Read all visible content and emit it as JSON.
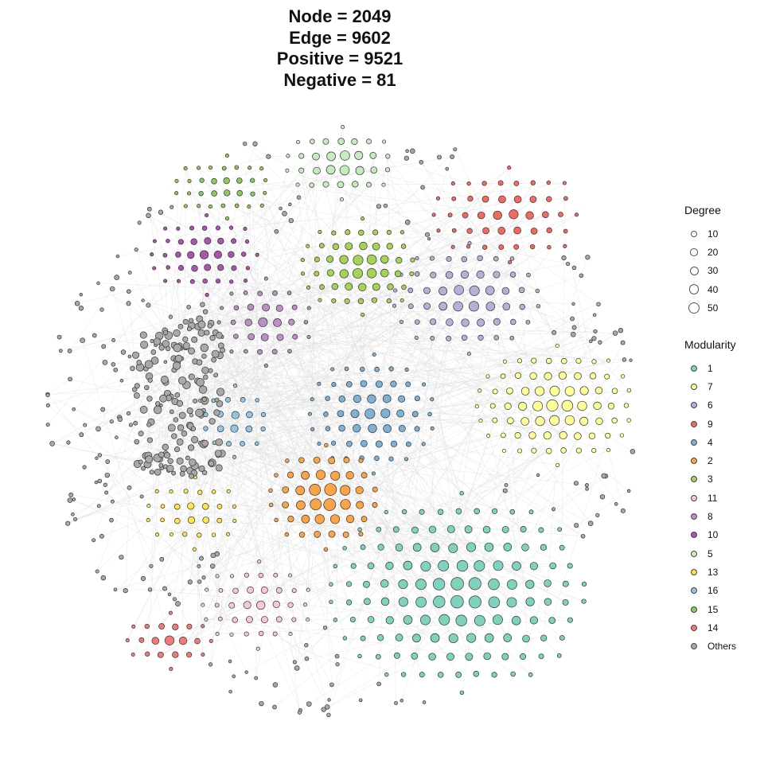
{
  "title": {
    "lines": [
      "Node = 2049",
      "Edge = 9602",
      "Positive = 9521",
      "Negative = 81"
    ]
  },
  "legend_degree": {
    "title": "Degree",
    "items": [
      {
        "label": "10",
        "value": 10
      },
      {
        "label": "20",
        "value": 20
      },
      {
        "label": "30",
        "value": 30
      },
      {
        "label": "40",
        "value": 40
      },
      {
        "label": "50",
        "value": 50
      }
    ]
  },
  "legend_modularity": {
    "title": "Modularity",
    "items": [
      {
        "label": "1",
        "color": "#7fd3be"
      },
      {
        "label": "7",
        "color": "#ffff99"
      },
      {
        "label": "6",
        "color": "#b6b0d6"
      },
      {
        "label": "9",
        "color": "#f16a62"
      },
      {
        "label": "4",
        "color": "#7eb1d4"
      },
      {
        "label": "2",
        "color": "#f9a446"
      },
      {
        "label": "3",
        "color": "#a6d356"
      },
      {
        "label": "11",
        "color": "#f7c5dc"
      },
      {
        "label": "8",
        "color": "#bb90c3"
      },
      {
        "label": "10",
        "color": "#a855ac"
      },
      {
        "label": "5",
        "color": "#c6ebbf"
      },
      {
        "label": "13",
        "color": "#ffe44a"
      },
      {
        "label": "16",
        "color": "#94c5e2"
      },
      {
        "label": "15",
        "color": "#8ec95b"
      },
      {
        "label": "14",
        "color": "#ef7a7b"
      },
      {
        "label": "Others",
        "color": "#a9a9a9"
      }
    ]
  }
}
